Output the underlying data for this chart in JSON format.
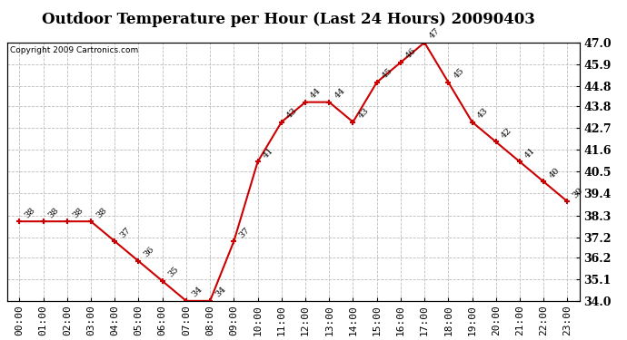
{
  "title": "Outdoor Temperature per Hour (Last 24 Hours) 20090403",
  "copyright": "Copyright 2009 Cartronics.com",
  "hours": [
    "00:00",
    "01:00",
    "02:00",
    "03:00",
    "04:00",
    "05:00",
    "06:00",
    "07:00",
    "08:00",
    "09:00",
    "10:00",
    "11:00",
    "12:00",
    "13:00",
    "14:00",
    "15:00",
    "16:00",
    "17:00",
    "18:00",
    "19:00",
    "20:00",
    "21:00",
    "22:00",
    "23:00"
  ],
  "temps": [
    38,
    38,
    38,
    38,
    37,
    36,
    35,
    34,
    34,
    37,
    41,
    43,
    44,
    44,
    43,
    45,
    46,
    47,
    45,
    43,
    42,
    41,
    40,
    39
  ],
  "ylim_min": 34.0,
  "ylim_max": 47.0,
  "line_color": "#cc0000",
  "marker_color": "#cc0000",
  "bg_color": "#ffffff",
  "grid_color": "#bbbbbb",
  "title_fontsize": 12,
  "copyright_fontsize": 6.5,
  "label_fontsize": 7,
  "tick_fontsize": 8,
  "ytick_fontsize": 9,
  "yticks": [
    34.0,
    35.1,
    36.2,
    37.2,
    38.3,
    39.4,
    40.5,
    41.6,
    42.7,
    43.8,
    44.8,
    45.9,
    47.0
  ]
}
